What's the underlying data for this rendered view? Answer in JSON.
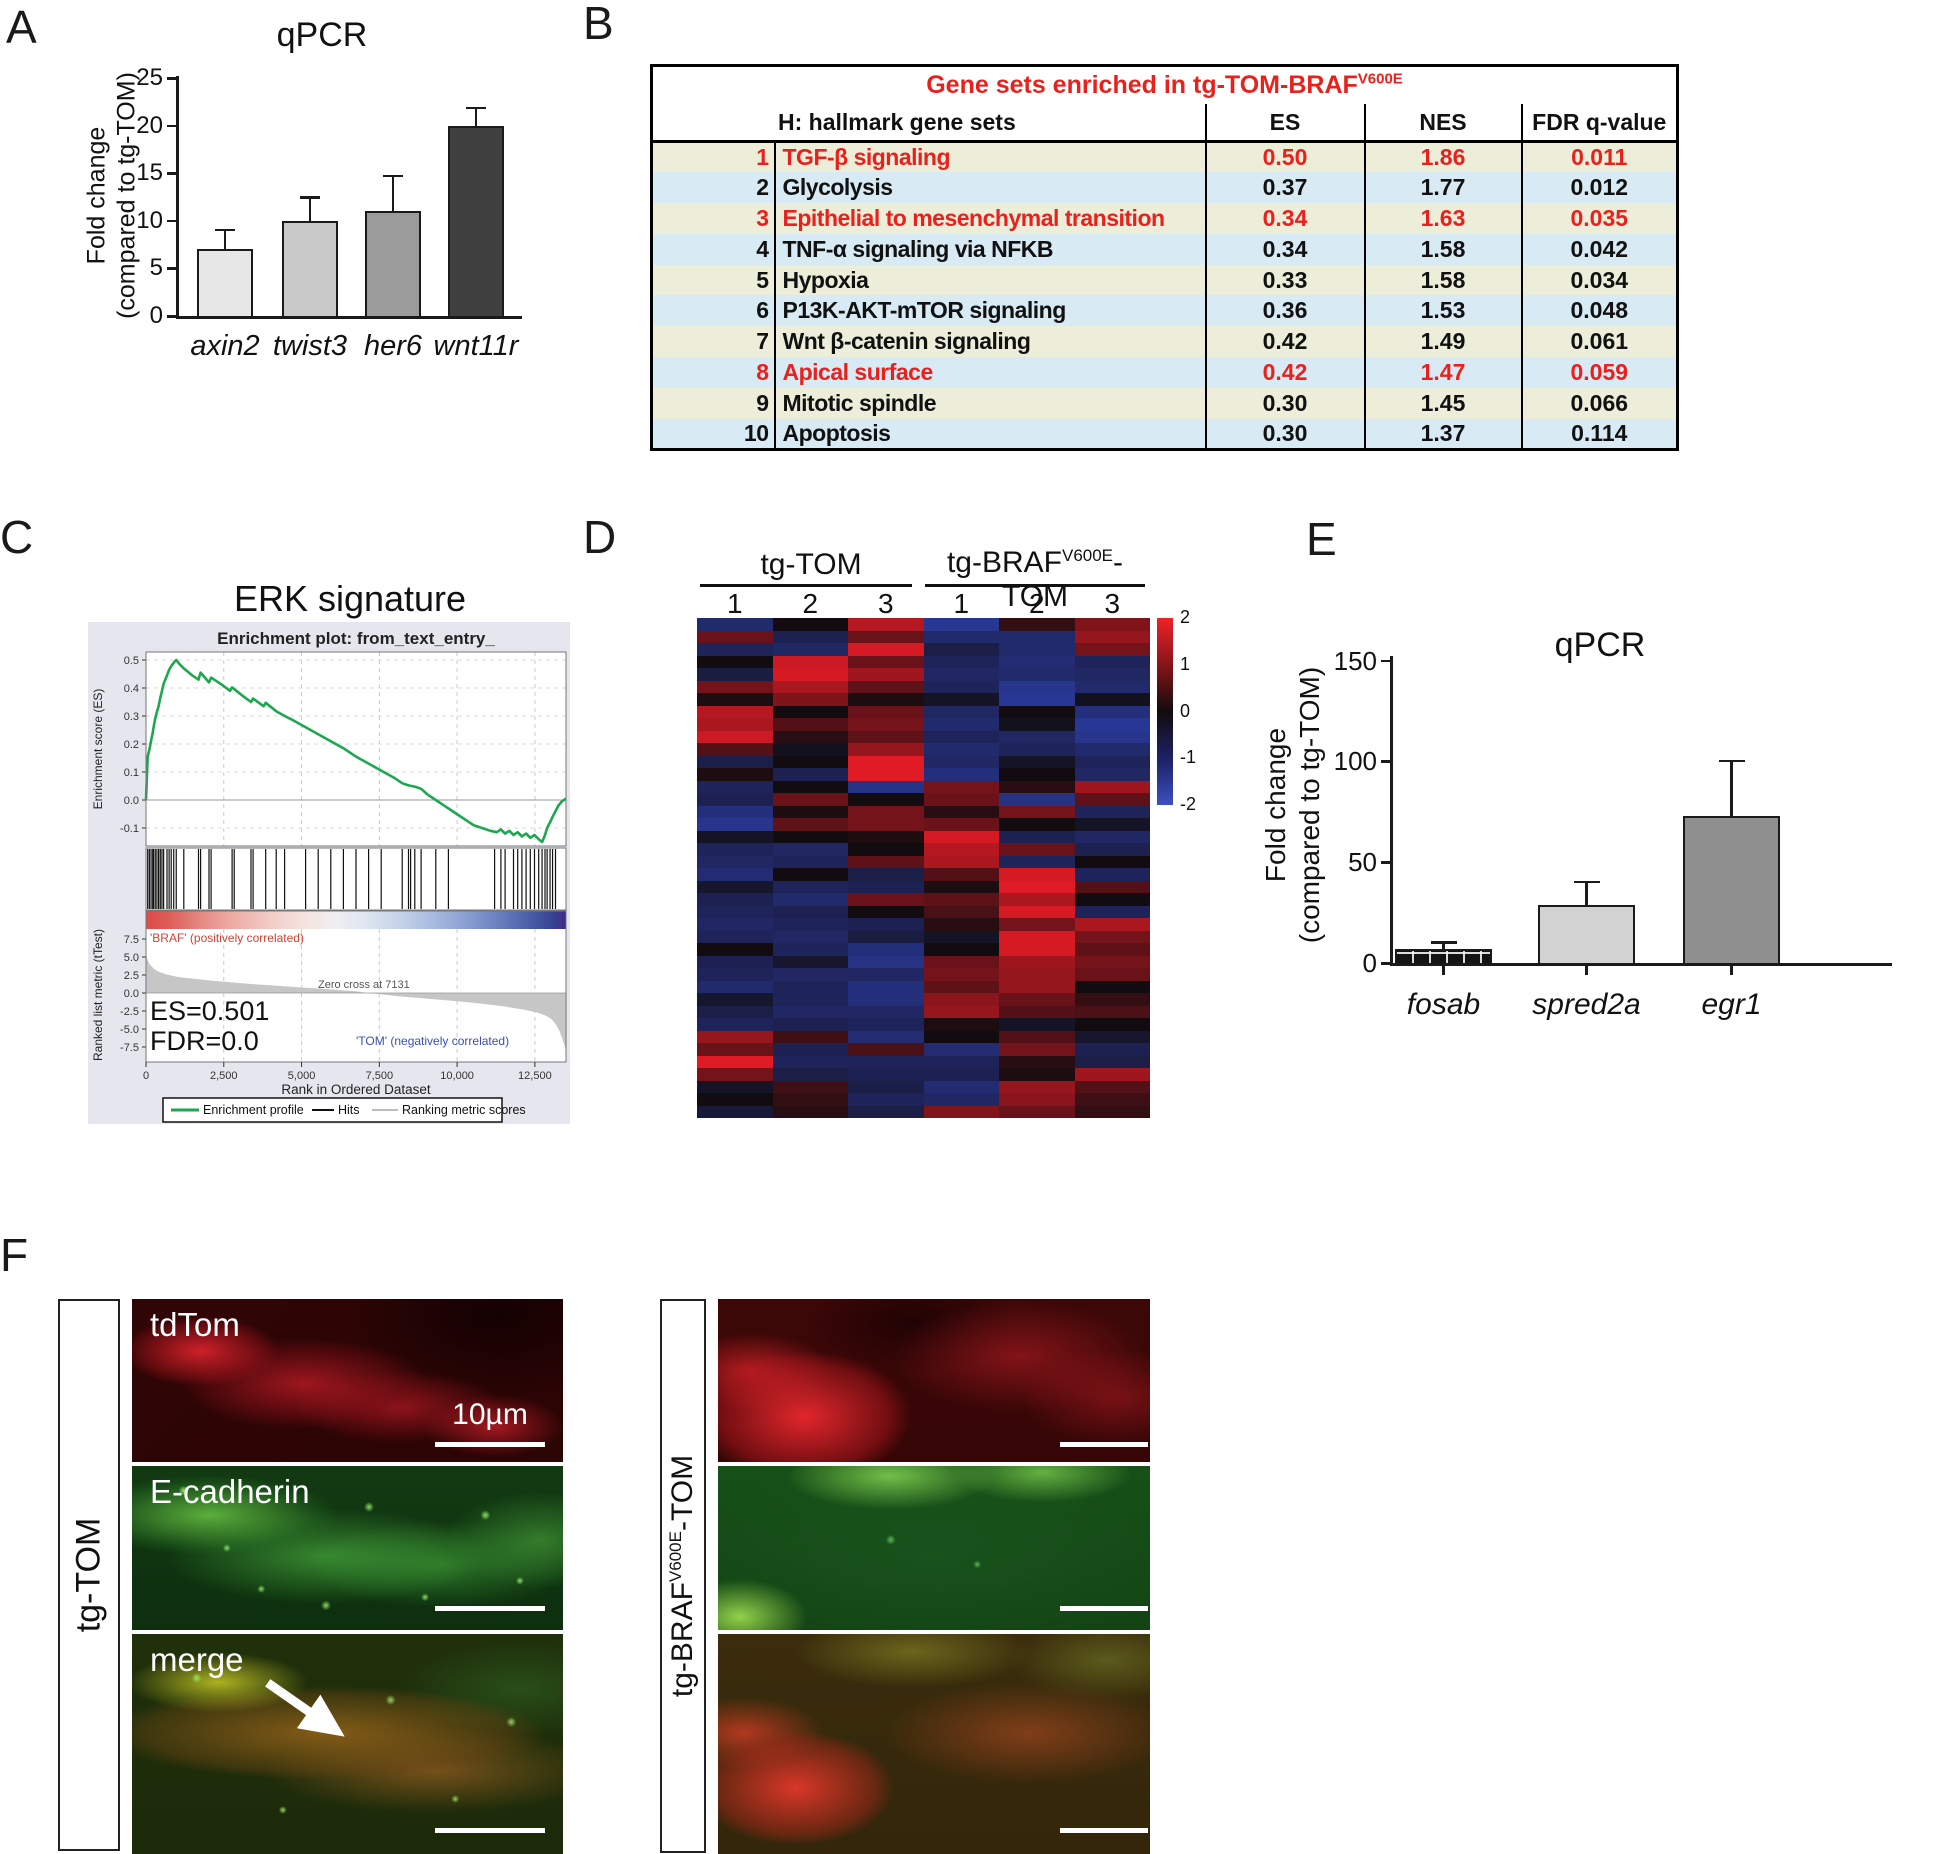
{
  "panels": {
    "a": {
      "label": "A",
      "chart_data": {
        "type": "bar",
        "title": "qPCR",
        "ylabel_line1": "Fold change",
        "ylabel_line2": "(compared to tg-TOM)",
        "categories": [
          "axin2",
          "twist3",
          "her6",
          "wnt11r"
        ],
        "values": [
          7,
          10,
          11,
          20
        ],
        "errors_plus": [
          2,
          2.4,
          3.7,
          1.8
        ],
        "bar_colors": [
          "#e7e7e7",
          "#c9c9c9",
          "#9b9b9b",
          "#404040"
        ],
        "ylim": [
          0,
          25
        ],
        "yticks": [
          "0",
          "5",
          "10",
          "15",
          "20",
          "25"
        ]
      }
    },
    "b": {
      "label": "B",
      "table": {
        "title_main": "Gene sets enriched in tg-TOM-BRAF",
        "title_sup": "V600E",
        "header_name": "H: hallmark gene sets",
        "header_es": "ES",
        "header_nes": "NES",
        "header_fdr": "FDR q-value",
        "highlight_color": "#e8211d",
        "row_colors": [
          "#eceeda",
          "#d8ebf4"
        ],
        "rows": [
          {
            "rank": "1",
            "name": "TGF-β signaling",
            "es": "0.50",
            "nes": "1.86",
            "fdr": "0.011",
            "highlight": true
          },
          {
            "rank": "2",
            "name": "Glycolysis",
            "es": "0.37",
            "nes": "1.77",
            "fdr": "0.012",
            "highlight": false
          },
          {
            "rank": "3",
            "name": "Epithelial to mesenchymal transition",
            "es": "0.34",
            "nes": "1.63",
            "fdr": "0.035",
            "highlight": true
          },
          {
            "rank": "4",
            "name": "TNF-α signaling via NFKB",
            "es": "0.34",
            "nes": "1.58",
            "fdr": "0.042",
            "highlight": false
          },
          {
            "rank": "5",
            "name": "Hypoxia",
            "es": "0.33",
            "nes": "1.58",
            "fdr": "0.034",
            "highlight": false
          },
          {
            "rank": "6",
            "name": "P13K-AKT-mTOR signaling",
            "es": "0.36",
            "nes": "1.53",
            "fdr": "0.048",
            "highlight": false
          },
          {
            "rank": "7",
            "name": "Wnt β-catenin signaling",
            "es": "0.42",
            "nes": "1.49",
            "fdr": "0.061",
            "highlight": false
          },
          {
            "rank": "8",
            "name": "Apical surface",
            "es": "0.42",
            "nes": "1.47",
            "fdr": "0.059",
            "highlight": true
          },
          {
            "rank": "9",
            "name": "Mitotic spindle",
            "es": "0.30",
            "nes": "1.45",
            "fdr": "0.066",
            "highlight": false
          },
          {
            "rank": "10",
            "name": "Apoptosis",
            "es": "0.30",
            "nes": "1.37",
            "fdr": "0.114",
            "highlight": false
          }
        ]
      }
    },
    "c": {
      "label": "C",
      "title": "ERK signature",
      "gsea": {
        "plot_title": "Enrichment plot: from_text_entry_",
        "es_ylabel": "Enrichment score (ES)",
        "es_yticks": [
          "0.5",
          "0.4",
          "0.3",
          "0.2",
          "0.1",
          "0.0",
          "-0.1"
        ],
        "rank_ylabel": "Ranked list metric (tTest)",
        "rank_yticks": [
          "7.5",
          "5.0",
          "2.5",
          "0.0",
          "-2.5",
          "-5.0",
          "-7.5"
        ],
        "xlabel": "Rank in Ordered Dataset",
        "xtick_labels": [
          "0",
          "2,500",
          "5,000",
          "7,500",
          "10,000",
          "12,500"
        ],
        "xtick_values": [
          0,
          2500,
          5000,
          7500,
          10000,
          12500
        ],
        "x_max": 13500,
        "pos_label": "'BRAF' (positively correlated)",
        "neg_label": "'TOM' (negatively correlated)",
        "zero_cross_label": "Zero cross at 7131",
        "es_text": "ES=0.501",
        "fdr_text": "FDR=0.0",
        "legend": [
          "Enrichment profile",
          "Hits",
          "Ranking metric scores"
        ],
        "curve_color": "#1da750",
        "curve": [
          [
            0,
            0
          ],
          [
            0.004,
            0.155
          ],
          [
            0.008,
            0.18
          ],
          [
            0.012,
            0.21
          ],
          [
            0.016,
            0.24
          ],
          [
            0.018,
            0.26
          ],
          [
            0.022,
            0.29
          ],
          [
            0.026,
            0.315
          ],
          [
            0.03,
            0.335
          ],
          [
            0.034,
            0.365
          ],
          [
            0.038,
            0.39
          ],
          [
            0.042,
            0.415
          ],
          [
            0.046,
            0.43
          ],
          [
            0.05,
            0.445
          ],
          [
            0.055,
            0.465
          ],
          [
            0.06,
            0.478
          ],
          [
            0.066,
            0.49
          ],
          [
            0.072,
            0.5
          ],
          [
            0.08,
            0.485
          ],
          [
            0.09,
            0.47
          ],
          [
            0.11,
            0.445
          ],
          [
            0.125,
            0.43
          ],
          [
            0.13,
            0.455
          ],
          [
            0.15,
            0.42
          ],
          [
            0.155,
            0.437
          ],
          [
            0.18,
            0.412
          ],
          [
            0.2,
            0.39
          ],
          [
            0.205,
            0.402
          ],
          [
            0.23,
            0.372
          ],
          [
            0.25,
            0.35
          ],
          [
            0.255,
            0.362
          ],
          [
            0.28,
            0.335
          ],
          [
            0.285,
            0.347
          ],
          [
            0.31,
            0.317
          ],
          [
            0.33,
            0.3
          ],
          [
            0.35,
            0.285
          ],
          [
            0.38,
            0.26
          ],
          [
            0.41,
            0.235
          ],
          [
            0.44,
            0.21
          ],
          [
            0.47,
            0.185
          ],
          [
            0.5,
            0.155
          ],
          [
            0.53,
            0.13
          ],
          [
            0.56,
            0.105
          ],
          [
            0.59,
            0.08
          ],
          [
            0.61,
            0.06
          ],
          [
            0.625,
            0.052
          ],
          [
            0.64,
            0.048
          ],
          [
            0.655,
            0.04
          ],
          [
            0.67,
            0.02
          ],
          [
            0.69,
            0
          ],
          [
            0.7,
            -0.01
          ],
          [
            0.72,
            -0.03
          ],
          [
            0.74,
            -0.05
          ],
          [
            0.76,
            -0.07
          ],
          [
            0.78,
            -0.09
          ],
          [
            0.8,
            -0.1
          ],
          [
            0.82,
            -0.11
          ],
          [
            0.835,
            -0.115
          ],
          [
            0.845,
            -0.105
          ],
          [
            0.855,
            -0.12
          ],
          [
            0.865,
            -0.11
          ],
          [
            0.875,
            -0.125
          ],
          [
            0.885,
            -0.115
          ],
          [
            0.895,
            -0.13
          ],
          [
            0.905,
            -0.12
          ],
          [
            0.915,
            -0.135
          ],
          [
            0.925,
            -0.125
          ],
          [
            0.935,
            -0.14
          ],
          [
            0.943,
            -0.15
          ],
          [
            0.95,
            -0.125
          ],
          [
            0.955,
            -0.1
          ],
          [
            0.962,
            -0.08
          ],
          [
            0.968,
            -0.06
          ],
          [
            0.975,
            -0.04
          ],
          [
            0.982,
            -0.02
          ],
          [
            0.99,
            -0.005
          ],
          [
            1,
            0.005
          ]
        ],
        "hits": [
          0.004,
          0.008,
          0.012,
          0.016,
          0.018,
          0.022,
          0.026,
          0.03,
          0.034,
          0.038,
          0.042,
          0.05,
          0.055,
          0.06,
          0.066,
          0.072,
          0.09,
          0.125,
          0.13,
          0.15,
          0.155,
          0.205,
          0.21,
          0.25,
          0.255,
          0.285,
          0.31,
          0.33,
          0.38,
          0.41,
          0.44,
          0.47,
          0.5,
          0.53,
          0.56,
          0.61,
          0.625,
          0.63,
          0.64,
          0.655,
          0.69,
          0.72,
          0.83,
          0.845,
          0.855,
          0.875,
          0.885,
          0.895,
          0.905,
          0.915,
          0.925,
          0.935,
          0.943,
          0.95,
          0.955,
          0.962,
          0.968,
          0.975
        ],
        "rank_metric": [
          [
            0,
            5.3
          ],
          [
            0.005,
            4.4
          ],
          [
            0.01,
            3.9
          ],
          [
            0.02,
            3.3
          ],
          [
            0.03,
            2.95
          ],
          [
            0.05,
            2.55
          ],
          [
            0.08,
            2.2
          ],
          [
            0.11,
            2
          ],
          [
            0.15,
            1.75
          ],
          [
            0.2,
            1.5
          ],
          [
            0.25,
            1.25
          ],
          [
            0.3,
            1.05
          ],
          [
            0.35,
            0.85
          ],
          [
            0.4,
            0.65
          ],
          [
            0.45,
            0.45
          ],
          [
            0.5,
            0.25
          ],
          [
            0.528,
            0
          ],
          [
            0.56,
            -0.2
          ],
          [
            0.6,
            -0.45
          ],
          [
            0.65,
            -0.7
          ],
          [
            0.7,
            -0.95
          ],
          [
            0.75,
            -1.2
          ],
          [
            0.8,
            -1.5
          ],
          [
            0.85,
            -1.85
          ],
          [
            0.9,
            -2.3
          ],
          [
            0.93,
            -2.7
          ],
          [
            0.95,
            -3.1
          ],
          [
            0.965,
            -3.6
          ],
          [
            0.975,
            -4.3
          ],
          [
            0.985,
            -5.3
          ],
          [
            0.992,
            -6.5
          ],
          [
            1,
            -7.9
          ]
        ],
        "band_stops": [
          [
            0,
            "#dd4b4b"
          ],
          [
            5,
            "#de5a55"
          ],
          [
            12,
            "#e4837d"
          ],
          [
            20,
            "#eda9a2"
          ],
          [
            30,
            "#f3cdc8"
          ],
          [
            38,
            "#f6e3e0"
          ],
          [
            45,
            "#f0eef1"
          ],
          [
            52,
            "#dfe6f2"
          ],
          [
            60,
            "#c6d3ea"
          ],
          [
            68,
            "#a9bce0"
          ],
          [
            76,
            "#8ba0d2"
          ],
          [
            83,
            "#6d84c2"
          ],
          [
            89,
            "#5268b0"
          ],
          [
            94,
            "#40519e"
          ],
          [
            97,
            "#36418f"
          ],
          [
            99,
            "#3f3190"
          ],
          [
            100,
            "#3a2a80"
          ]
        ]
      }
    },
    "d": {
      "label": "D",
      "heatmap": {
        "type": "heatmap",
        "group1_label": "tg-TOM",
        "group2_pre": "tg-BRAF",
        "group2_sup": "V600E",
        "group2_post": "-TOM",
        "col_numbers": [
          "1",
          "2",
          "3",
          "1",
          "2",
          "3"
        ],
        "colorbar_ticks": [
          "2",
          "1",
          "0",
          "-1",
          "-2"
        ],
        "vmin": -2,
        "vmax": 2,
        "values": [
          [
            -1.0,
            0.0,
            1.5,
            -1.5,
            0.3,
            1.0
          ],
          [
            0.8,
            -0.7,
            0.8,
            -1.0,
            -1.0,
            1.2
          ],
          [
            -0.8,
            -0.9,
            1.8,
            -0.6,
            -1.0,
            0.9
          ],
          [
            0.0,
            1.7,
            0.8,
            -0.8,
            -1.1,
            -0.8
          ],
          [
            -0.5,
            1.8,
            1.3,
            -0.9,
            -1.0,
            -0.9
          ],
          [
            0.9,
            1.4,
            0.7,
            -0.8,
            -1.4,
            -1.0
          ],
          [
            0.1,
            1.0,
            0.1,
            -0.2,
            -1.5,
            -0.1
          ],
          [
            1.5,
            0.0,
            0.8,
            -0.9,
            0.0,
            -1.2
          ],
          [
            1.4,
            0.6,
            0.9,
            -1.0,
            -0.1,
            -1.5
          ],
          [
            1.7,
            0.2,
            0.7,
            -0.8,
            -0.9,
            -1.4
          ],
          [
            0.6,
            -0.1,
            1.2,
            -1.0,
            -0.8,
            -1.0
          ],
          [
            -0.6,
            0.0,
            1.9,
            -0.9,
            -0.2,
            -0.8
          ],
          [
            0.1,
            -0.7,
            1.9,
            -1.2,
            0.0,
            -0.9
          ],
          [
            -0.8,
            0.0,
            -1.3,
            0.9,
            0.2,
            1.3
          ],
          [
            -0.7,
            0.8,
            0.0,
            0.8,
            -1.3,
            0.7
          ],
          [
            -1.2,
            0.1,
            0.9,
            0.2,
            0.9,
            -0.8
          ],
          [
            -1.4,
            0.7,
            0.9,
            0.8,
            0.0,
            -0.2
          ],
          [
            -0.2,
            0.0,
            0.1,
            1.8,
            -0.7,
            -0.9
          ],
          [
            -0.8,
            -0.9,
            0.0,
            1.5,
            0.8,
            -0.7
          ],
          [
            -0.9,
            -0.8,
            0.7,
            1.4,
            -0.8,
            0.0
          ],
          [
            -1.1,
            0.0,
            -0.6,
            0.6,
            1.8,
            -0.8
          ],
          [
            -0.3,
            -0.8,
            -0.7,
            0.1,
            1.9,
            0.6
          ],
          [
            -0.7,
            -1.0,
            0.8,
            0.7,
            1.4,
            0.0
          ],
          [
            -0.8,
            -0.7,
            0.0,
            0.5,
            1.8,
            -0.8
          ],
          [
            -0.9,
            -0.8,
            -0.7,
            0.2,
            0.9,
            1.4
          ],
          [
            -0.8,
            -0.9,
            -0.5,
            -0.2,
            1.8,
            0.9
          ],
          [
            0.0,
            -0.8,
            -1.2,
            0.0,
            1.8,
            0.7
          ],
          [
            -0.7,
            -0.3,
            -1.3,
            0.8,
            1.3,
            0.9
          ],
          [
            -0.8,
            -0.9,
            -0.9,
            0.9,
            1.2,
            0.8
          ],
          [
            -1.0,
            -0.8,
            -1.2,
            0.7,
            1.2,
            0.0
          ],
          [
            -0.3,
            -0.8,
            -1.2,
            1.1,
            0.8,
            0.3
          ],
          [
            -0.6,
            -0.9,
            -0.9,
            1.2,
            0.6,
            0.5
          ],
          [
            -0.8,
            -0.7,
            -0.8,
            0.1,
            -0.2,
            0.0
          ],
          [
            1.2,
            0.4,
            -1.1,
            0.0,
            0.6,
            -0.3
          ],
          [
            0.8,
            -0.7,
            0.5,
            -1.1,
            0.9,
            -0.7
          ],
          [
            1.9,
            -0.8,
            -0.8,
            -0.8,
            0.2,
            -0.6
          ],
          [
            0.9,
            -0.6,
            -0.7,
            -0.7,
            0.1,
            1.3
          ],
          [
            -0.2,
            0.4,
            -0.6,
            -1.1,
            1.2,
            0.6
          ],
          [
            0.0,
            0.3,
            -0.8,
            -0.9,
            1.1,
            0.4
          ],
          [
            -0.4,
            0.2,
            -0.6,
            1.0,
            0.8,
            0.3
          ]
        ]
      }
    },
    "e": {
      "label": "E",
      "chart_data": {
        "type": "bar",
        "title": "qPCR",
        "ylabel_line1": "Fold change",
        "ylabel_line2": "(compared to tg-TOM)",
        "categories": [
          "fosab",
          "spred2a",
          "egr1"
        ],
        "values": [
          7,
          29,
          73
        ],
        "errors_plus": [
          3,
          11,
          27
        ],
        "bar_colors": [
          "hatch",
          "#d2d2d2",
          "#8f8f8f"
        ],
        "ylim": [
          0,
          150
        ],
        "yticks": [
          "0",
          "50",
          "100",
          "150"
        ]
      }
    },
    "f": {
      "label": "F",
      "group1_label": "tg-TOM",
      "group2_pre": "tg-BRAF",
      "group2_sup": "V600E",
      "group2_post": "-TOM",
      "row_labels": [
        "tdTom",
        "E-cadherin",
        "merge"
      ],
      "scalebar_label": "10µm"
    }
  }
}
